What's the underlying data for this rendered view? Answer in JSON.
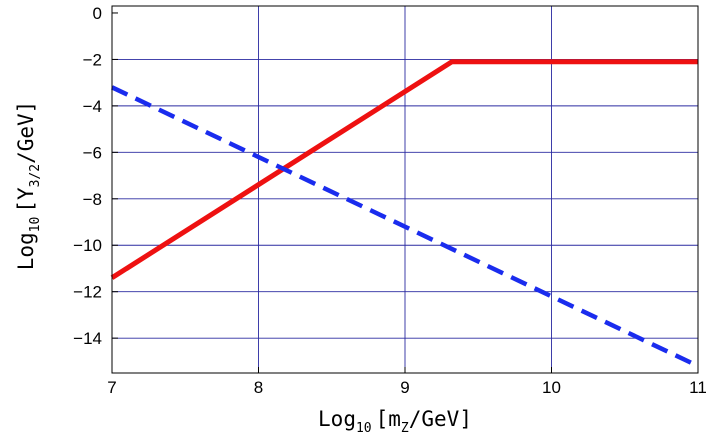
{
  "chart_data": {
    "type": "line",
    "xlabel": {
      "prefix": "Log",
      "sub": "10",
      "suffix": "[m",
      "sub2": "Z",
      "end": "/GeV]"
    },
    "ylabel": {
      "prefix": "Log",
      "sub": "10",
      "suffix": "[Y",
      "sub2": "3/2",
      "end": "/GeV]"
    },
    "xlim": [
      7,
      11
    ],
    "ylim": [
      -15.5,
      0.3
    ],
    "x_ticks": [
      "7",
      "8",
      "9",
      "10",
      "11"
    ],
    "y_ticks": [
      "0",
      "-2",
      "-4",
      "-6",
      "-8",
      "-10",
      "-12",
      "-14"
    ],
    "grid": true,
    "colors": {
      "grid": "#2a2aa0",
      "solid": "#ee1111",
      "dashed": "#1a2cee",
      "frame": "#000000"
    },
    "series": [
      {
        "style": "solid",
        "x": [
          7,
          9.32,
          11
        ],
        "y": [
          -11.4,
          -2.1,
          -2.1
        ]
      },
      {
        "style": "dashed",
        "x": [
          7,
          11
        ],
        "y": [
          -3.2,
          -15.2
        ]
      }
    ]
  }
}
